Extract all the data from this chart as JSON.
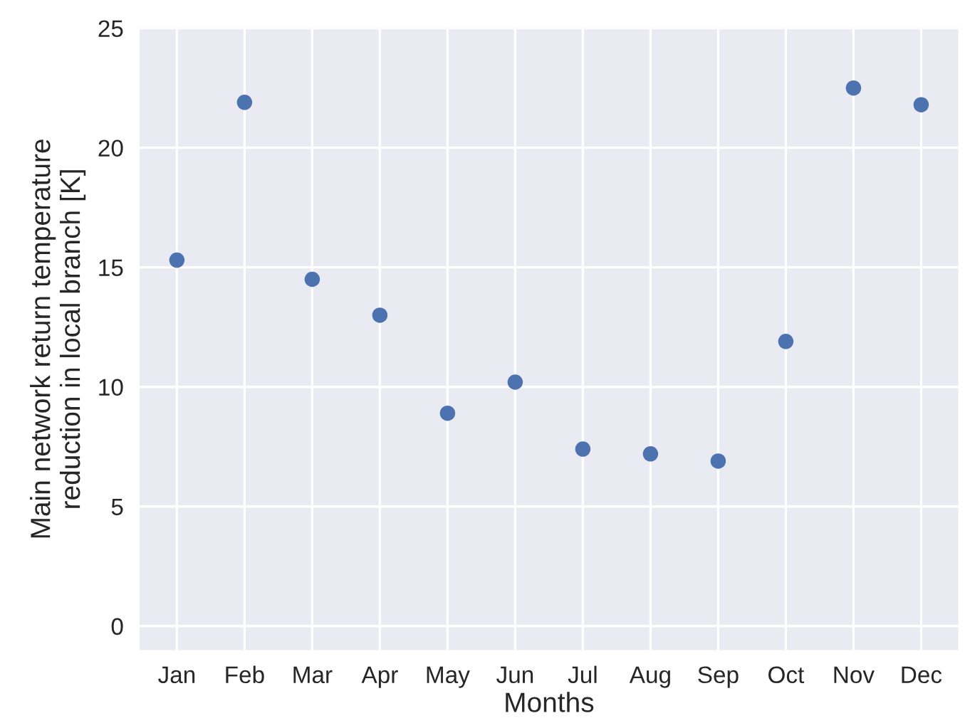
{
  "chart_data": {
    "type": "scatter",
    "xlabel": "Months",
    "ylabel": "Main network return temperature\nreduction in local branch [K]",
    "categories": [
      "Jan",
      "Feb",
      "Mar",
      "Apr",
      "May",
      "Jun",
      "Jul",
      "Aug",
      "Sep",
      "Oct",
      "Nov",
      "Dec"
    ],
    "values": [
      15.3,
      21.9,
      14.5,
      13.0,
      8.9,
      10.2,
      7.4,
      7.2,
      6.9,
      11.9,
      22.5,
      21.8
    ],
    "color": "#4c72b0",
    "marker": "circle",
    "ylim": [
      -1,
      25
    ],
    "yticks": [
      0,
      5,
      10,
      15,
      20,
      25
    ],
    "grid": true
  }
}
